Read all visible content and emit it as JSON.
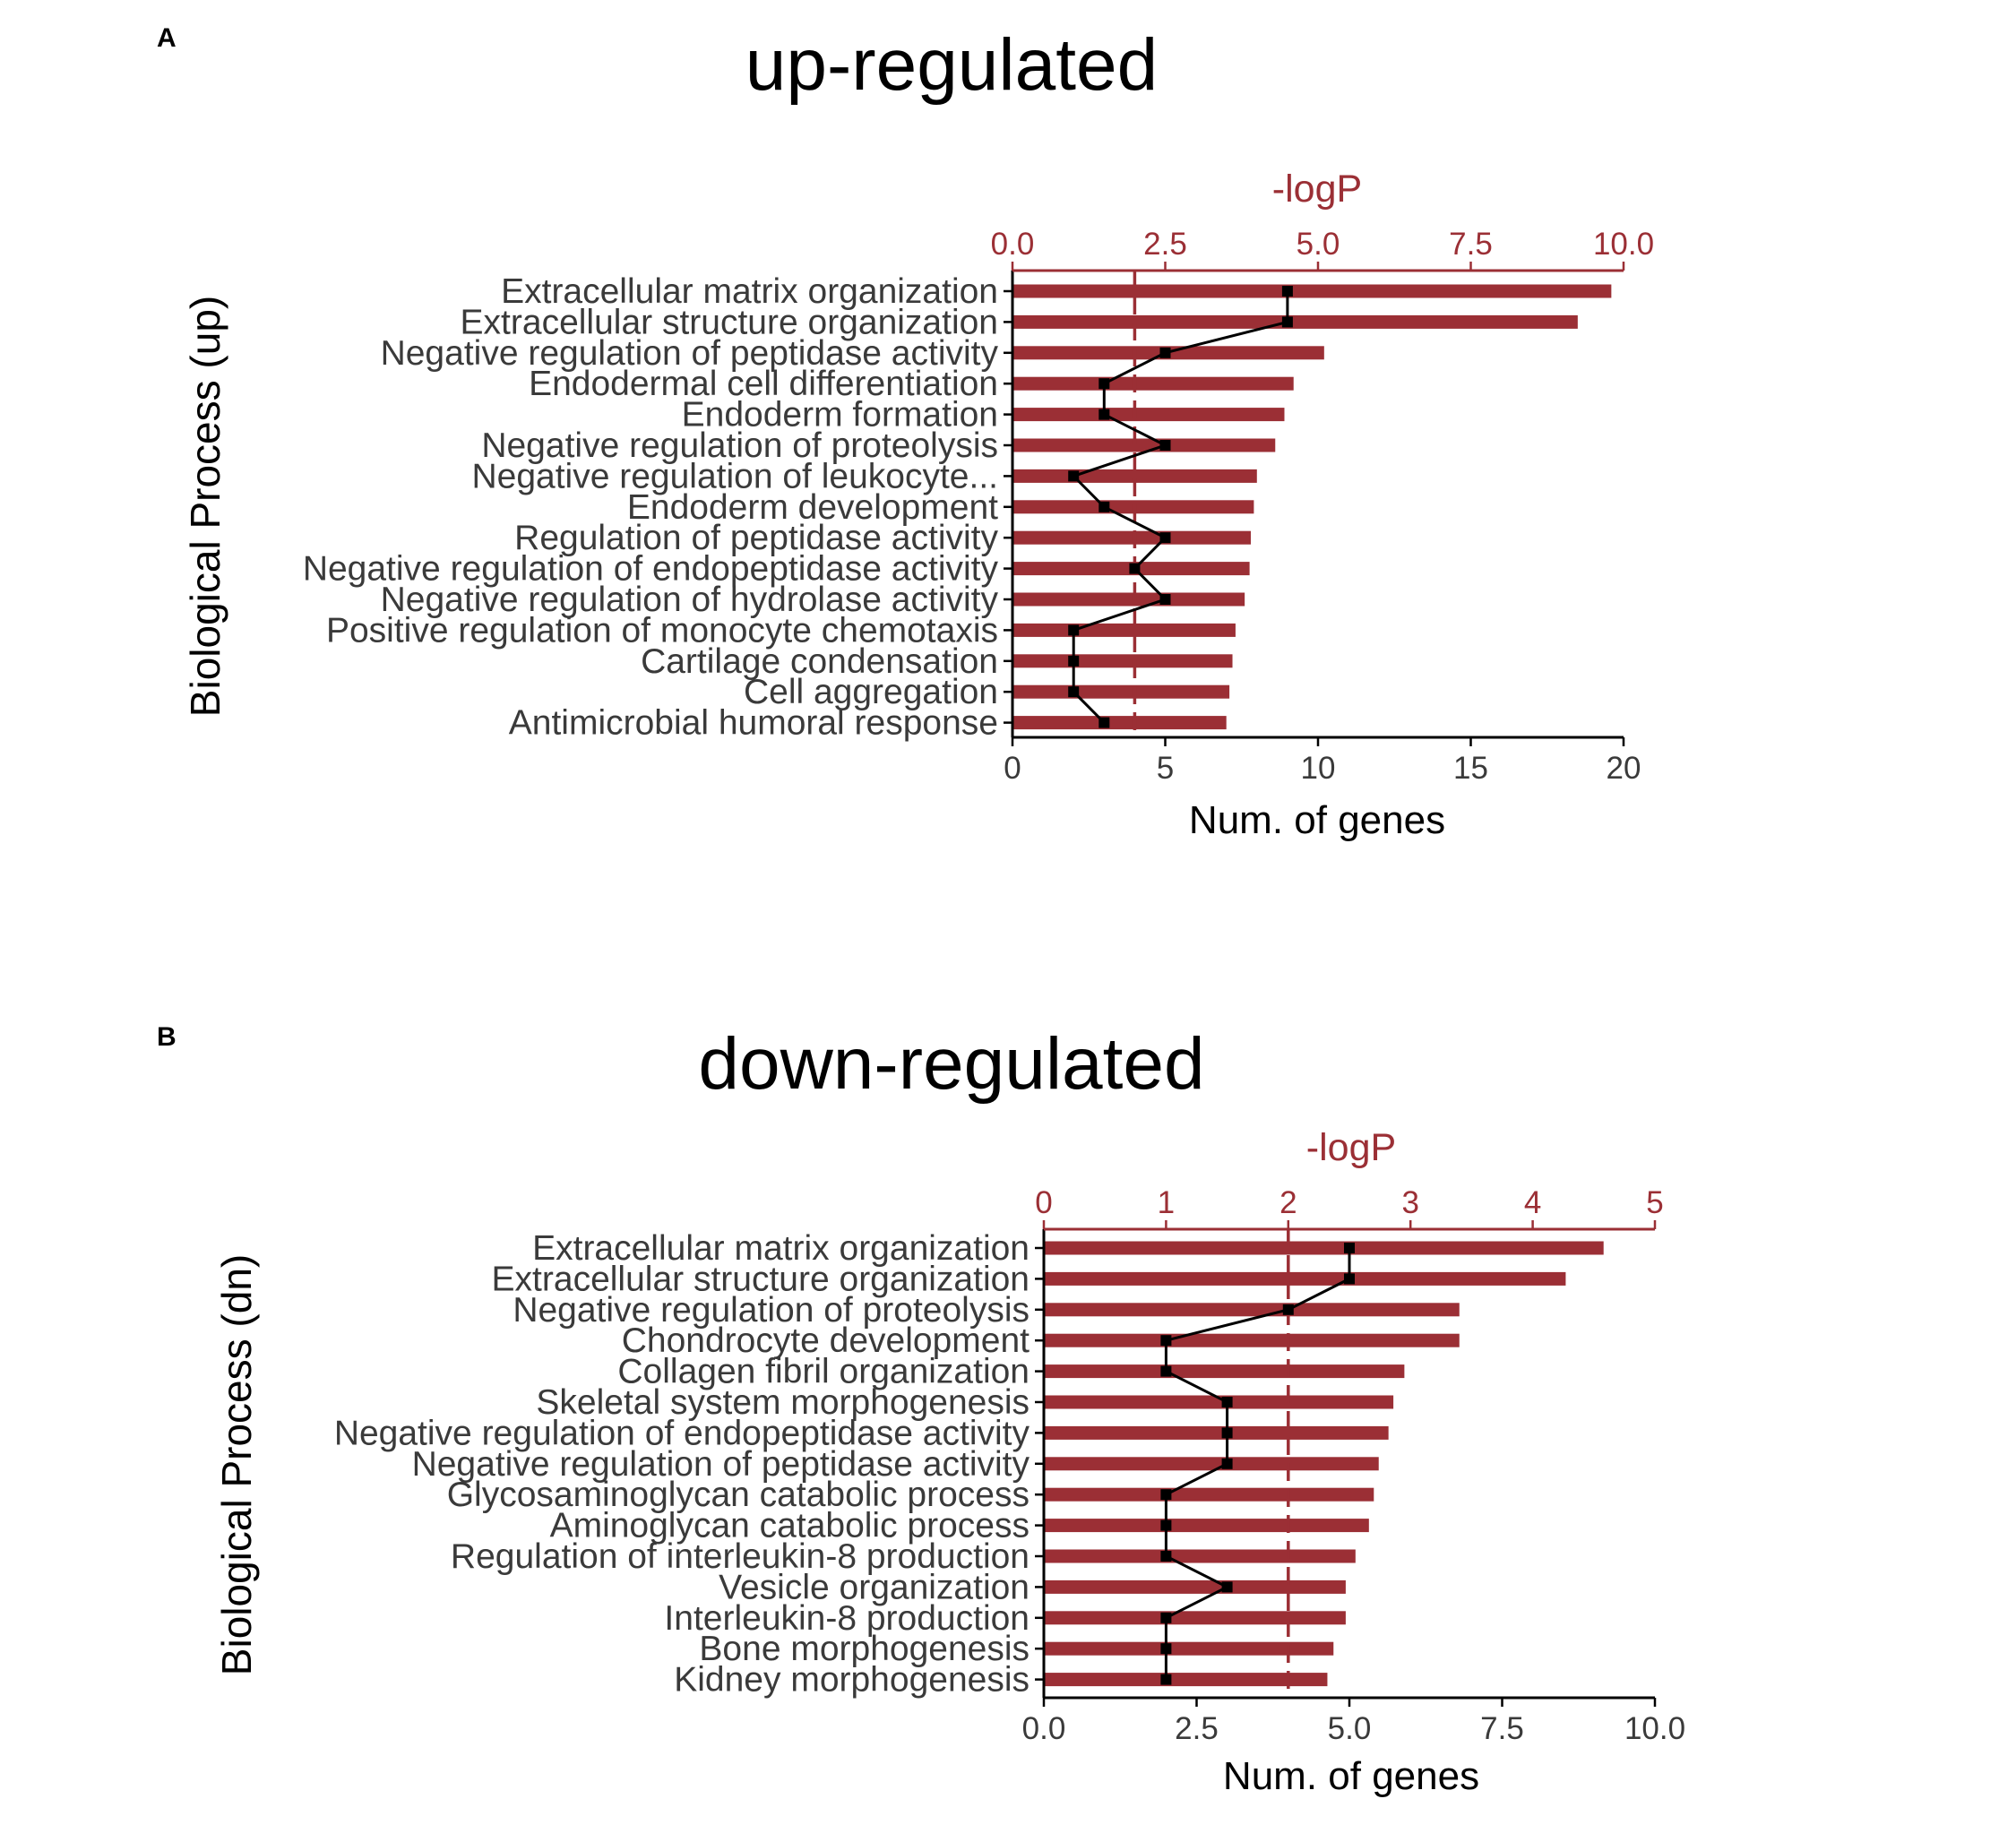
{
  "colors": {
    "bar": "#9b2f35",
    "line": "#000000",
    "axis": "#000000",
    "text": "#3a3a3a"
  },
  "chart_data": [
    {
      "type": "bar",
      "panel_label": "A",
      "title": "up-regulated",
      "ylabel": "Biological Process (up)",
      "xlabel": "Num. of genes",
      "xlim": [
        0,
        20
      ],
      "xticks": [
        "0",
        "5",
        "10",
        "15",
        "20"
      ],
      "xtick_values": [
        0,
        5,
        10,
        15,
        20
      ],
      "secondary_axis": {
        "title": "-logP",
        "lim": [
          0,
          10
        ],
        "ticks": [
          "0.0",
          "2.5",
          "5.0",
          "7.5",
          "10.0"
        ],
        "tick_values": [
          0,
          2.5,
          5,
          7.5,
          10
        ],
        "reference_line": 2
      },
      "categories": [
        "Extracellular matrix organization",
        "Extracellular structure organization",
        "Negative regulation of peptidase activity",
        "Endodermal cell differentiation",
        "Endoderm formation",
        "Negative regulation of proteolysis",
        "Negative regulation of leukocyte...",
        "Endoderm development",
        "Regulation of peptidase activity",
        "Negative regulation of endopeptidase activity",
        "Negative regulation of hydrolase activity",
        "Positive regulation of monocyte chemotaxis",
        "Cartilage condensation",
        "Cell aggregation",
        "Antimicrobial humoral response"
      ],
      "neg_log_p": [
        9.8,
        9.25,
        5.1,
        4.6,
        4.45,
        4.3,
        4.0,
        3.95,
        3.9,
        3.88,
        3.8,
        3.65,
        3.6,
        3.55,
        3.5
      ],
      "num_genes": [
        9,
        9,
        5,
        3,
        3,
        5,
        2,
        3,
        5,
        4,
        5,
        2,
        2,
        2,
        3
      ]
    },
    {
      "type": "bar",
      "panel_label": "B",
      "title": "down-regulated",
      "ylabel": "Biological Process (dn)",
      "xlabel": "Num. of genes",
      "xlim": [
        0,
        10
      ],
      "xticks": [
        "0.0",
        "2.5",
        "5.0",
        "7.5",
        "10.0"
      ],
      "xtick_values": [
        0,
        2.5,
        5,
        7.5,
        10
      ],
      "secondary_axis": {
        "title": "-logP",
        "lim": [
          0,
          5
        ],
        "ticks": [
          "0",
          "1",
          "2",
          "3",
          "4",
          "5"
        ],
        "tick_values": [
          0,
          1,
          2,
          3,
          4,
          5
        ],
        "reference_line": 2
      },
      "categories": [
        "Extracellular matrix organization",
        "Extracellular structure organization",
        "Negative regulation of proteolysis",
        "Chondrocyte development",
        "Collagen fibril organization",
        "Skeletal system morphogenesis",
        "Negative regulation of endopeptidase activity",
        "Negative regulation of peptidase activity",
        "Glycosaminoglycan catabolic process",
        "Aminoglycan catabolic process",
        "Regulation of interleukin-8 production",
        "Vesicle organization",
        "Interleukin-8 production",
        "Bone morphogenesis",
        "Kidney morphogenesis"
      ],
      "neg_log_p": [
        4.58,
        4.27,
        3.4,
        3.4,
        2.95,
        2.86,
        2.82,
        2.74,
        2.7,
        2.66,
        2.55,
        2.47,
        2.47,
        2.37,
        2.32
      ],
      "num_genes": [
        5,
        5,
        4,
        2,
        2,
        3,
        3,
        3,
        2,
        2,
        2,
        3,
        2,
        2,
        2
      ]
    }
  ]
}
